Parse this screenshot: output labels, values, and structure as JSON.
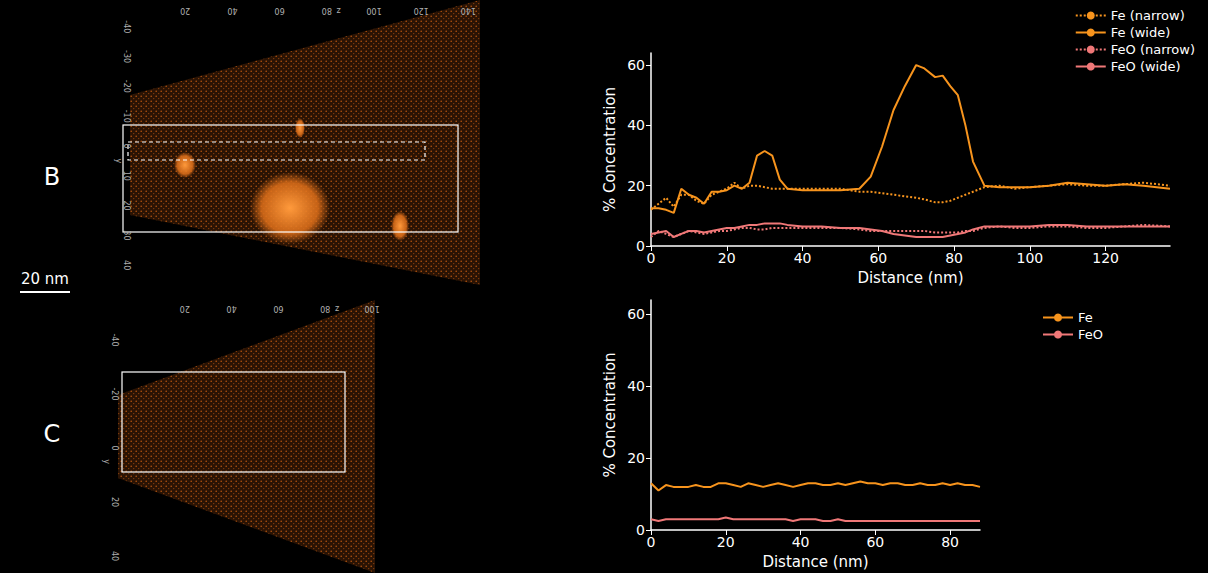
{
  "chart_data": [
    {
      "type": "line",
      "xlabel": "Distance (nm)",
      "ylabel": "% Concentration",
      "x": [
        0,
        2,
        4,
        6,
        8,
        10,
        12,
        14,
        16,
        18,
        20,
        22,
        24,
        26,
        28,
        30,
        32,
        34,
        36,
        40,
        45,
        50,
        55,
        58,
        61,
        64,
        67,
        70,
        72,
        75,
        77,
        79,
        81,
        83,
        85,
        88,
        92,
        96,
        100,
        105,
        110,
        115,
        120,
        125,
        130,
        137
      ],
      "xlim": [
        0,
        137
      ],
      "xticks": [
        0,
        20,
        40,
        60,
        80,
        100,
        120
      ],
      "ylim": [
        0,
        64
      ],
      "yticks": [
        0,
        20,
        40,
        60
      ],
      "grid": false,
      "legend": "top-right",
      "marker": "none",
      "series": [
        {
          "name": "Fe (narrow)",
          "color": "#f7941d",
          "line_style": "dotted",
          "values": [
            12,
            14,
            16,
            13,
            17,
            17,
            15,
            14,
            17,
            18,
            19,
            21,
            19,
            20,
            20,
            19.5,
            19,
            19,
            19,
            19,
            19,
            19,
            18,
            18,
            17.5,
            17,
            16.5,
            16,
            15.5,
            14.5,
            14.5,
            15,
            16,
            17,
            18,
            19.5,
            20,
            19,
            19.5,
            20,
            20.5,
            20,
            20,
            20.5,
            21,
            20
          ]
        },
        {
          "name": "Fe (wide)",
          "color": "#f7941d",
          "line_style": "solid",
          "values": [
            12.5,
            12.5,
            12,
            11,
            19,
            17,
            16,
            14,
            18,
            18,
            18.5,
            20,
            19,
            21,
            30,
            31.5,
            30,
            22,
            19,
            18.5,
            18.5,
            18.5,
            19,
            23,
            33,
            45,
            53,
            60,
            59,
            56,
            56.5,
            53,
            50,
            40,
            28,
            20,
            19.5,
            19.5,
            19.5,
            20,
            21,
            20.5,
            20,
            20.5,
            20,
            19
          ]
        },
        {
          "name": "FeO (narrow)",
          "color": "#f07878",
          "line_style": "dotted",
          "values": [
            3,
            5,
            4,
            3,
            4,
            5,
            4.5,
            4,
            4.5,
            5,
            5,
            5.5,
            6,
            6,
            5.5,
            5.5,
            6,
            6,
            6,
            6,
            6,
            6,
            5.5,
            5,
            5,
            5,
            5,
            5,
            5,
            4.5,
            4.5,
            4.5,
            4.5,
            5,
            5,
            6,
            6.5,
            6,
            6,
            6.5,
            6.5,
            6,
            6,
            6.5,
            7,
            6.5
          ]
        },
        {
          "name": "FeO (wide)",
          "color": "#f07878",
          "line_style": "solid",
          "values": [
            4,
            4.5,
            5,
            3,
            4,
            5,
            5,
            4.5,
            5,
            5.5,
            6,
            6,
            6.5,
            7,
            7,
            7.5,
            7.5,
            7.5,
            7,
            6.5,
            6.5,
            6,
            6,
            5.5,
            5,
            4,
            3.5,
            3,
            3,
            3,
            3,
            3.5,
            4,
            4.5,
            5.5,
            6.5,
            6.5,
            6.5,
            6.5,
            7,
            7,
            6.5,
            6.5,
            6.5,
            6.5,
            6.5
          ]
        }
      ]
    },
    {
      "type": "line",
      "xlabel": "Distance (nm)",
      "ylabel": "% Concentration",
      "x": [
        0,
        2,
        4,
        6,
        8,
        10,
        12,
        14,
        16,
        18,
        20,
        22,
        24,
        26,
        28,
        30,
        32,
        34,
        36,
        38,
        40,
        42,
        44,
        46,
        48,
        50,
        52,
        54,
        56,
        58,
        60,
        62,
        64,
        66,
        68,
        70,
        72,
        74,
        76,
        78,
        80,
        82,
        84,
        86,
        88
      ],
      "xlim": [
        0,
        88
      ],
      "xticks": [
        0,
        20,
        40,
        60,
        80
      ],
      "ylim": [
        0,
        64
      ],
      "yticks": [
        0,
        20,
        40,
        60
      ],
      "grid": false,
      "legend": "top-right",
      "marker": "none",
      "series": [
        {
          "name": "Fe",
          "color": "#f7941d",
          "line_style": "solid",
          "values": [
            13,
            11,
            12.5,
            12,
            12,
            12,
            12.5,
            12,
            12,
            13,
            13,
            12.5,
            12,
            13,
            12.5,
            12,
            12.5,
            13,
            12.5,
            12,
            12.5,
            13,
            13,
            12.5,
            12.5,
            13,
            12.5,
            13,
            13.5,
            13,
            13,
            12.5,
            13,
            13,
            12.5,
            12.5,
            13,
            12.5,
            12.5,
            13,
            12.5,
            13,
            12.5,
            12.5,
            12
          ]
        },
        {
          "name": "FeO",
          "color": "#f07878",
          "line_style": "solid",
          "values": [
            3,
            2.5,
            3,
            3,
            3,
            3,
            3,
            3,
            3,
            3,
            3.5,
            3,
            3,
            3,
            3,
            3,
            3,
            3,
            3,
            2.5,
            3,
            3,
            3,
            2.5,
            2.5,
            3,
            2.5,
            2.5,
            2.5,
            2.5,
            2.5,
            2.5,
            2.5,
            2.5,
            2.5,
            2.5,
            2.5,
            2.5,
            2.5,
            2.5,
            2.5,
            2.5,
            2.5,
            2.5,
            2.5
          ]
        }
      ]
    }
  ],
  "reconstructions": [
    {
      "label": "B",
      "z_label": "z",
      "z_ticks": [
        20,
        40,
        60,
        80,
        100,
        120,
        140
      ],
      "y_label": "y",
      "y_ticks": [
        -40,
        -30,
        -20,
        -10,
        0,
        10,
        20,
        30,
        40
      ]
    },
    {
      "label": "C",
      "z_label": "z",
      "z_ticks": [
        20,
        40,
        60,
        80,
        100
      ],
      "y_label": "y",
      "y_ticks": [
        -40,
        -20,
        0,
        20,
        40
      ]
    }
  ],
  "scale_bar": "20 nm"
}
